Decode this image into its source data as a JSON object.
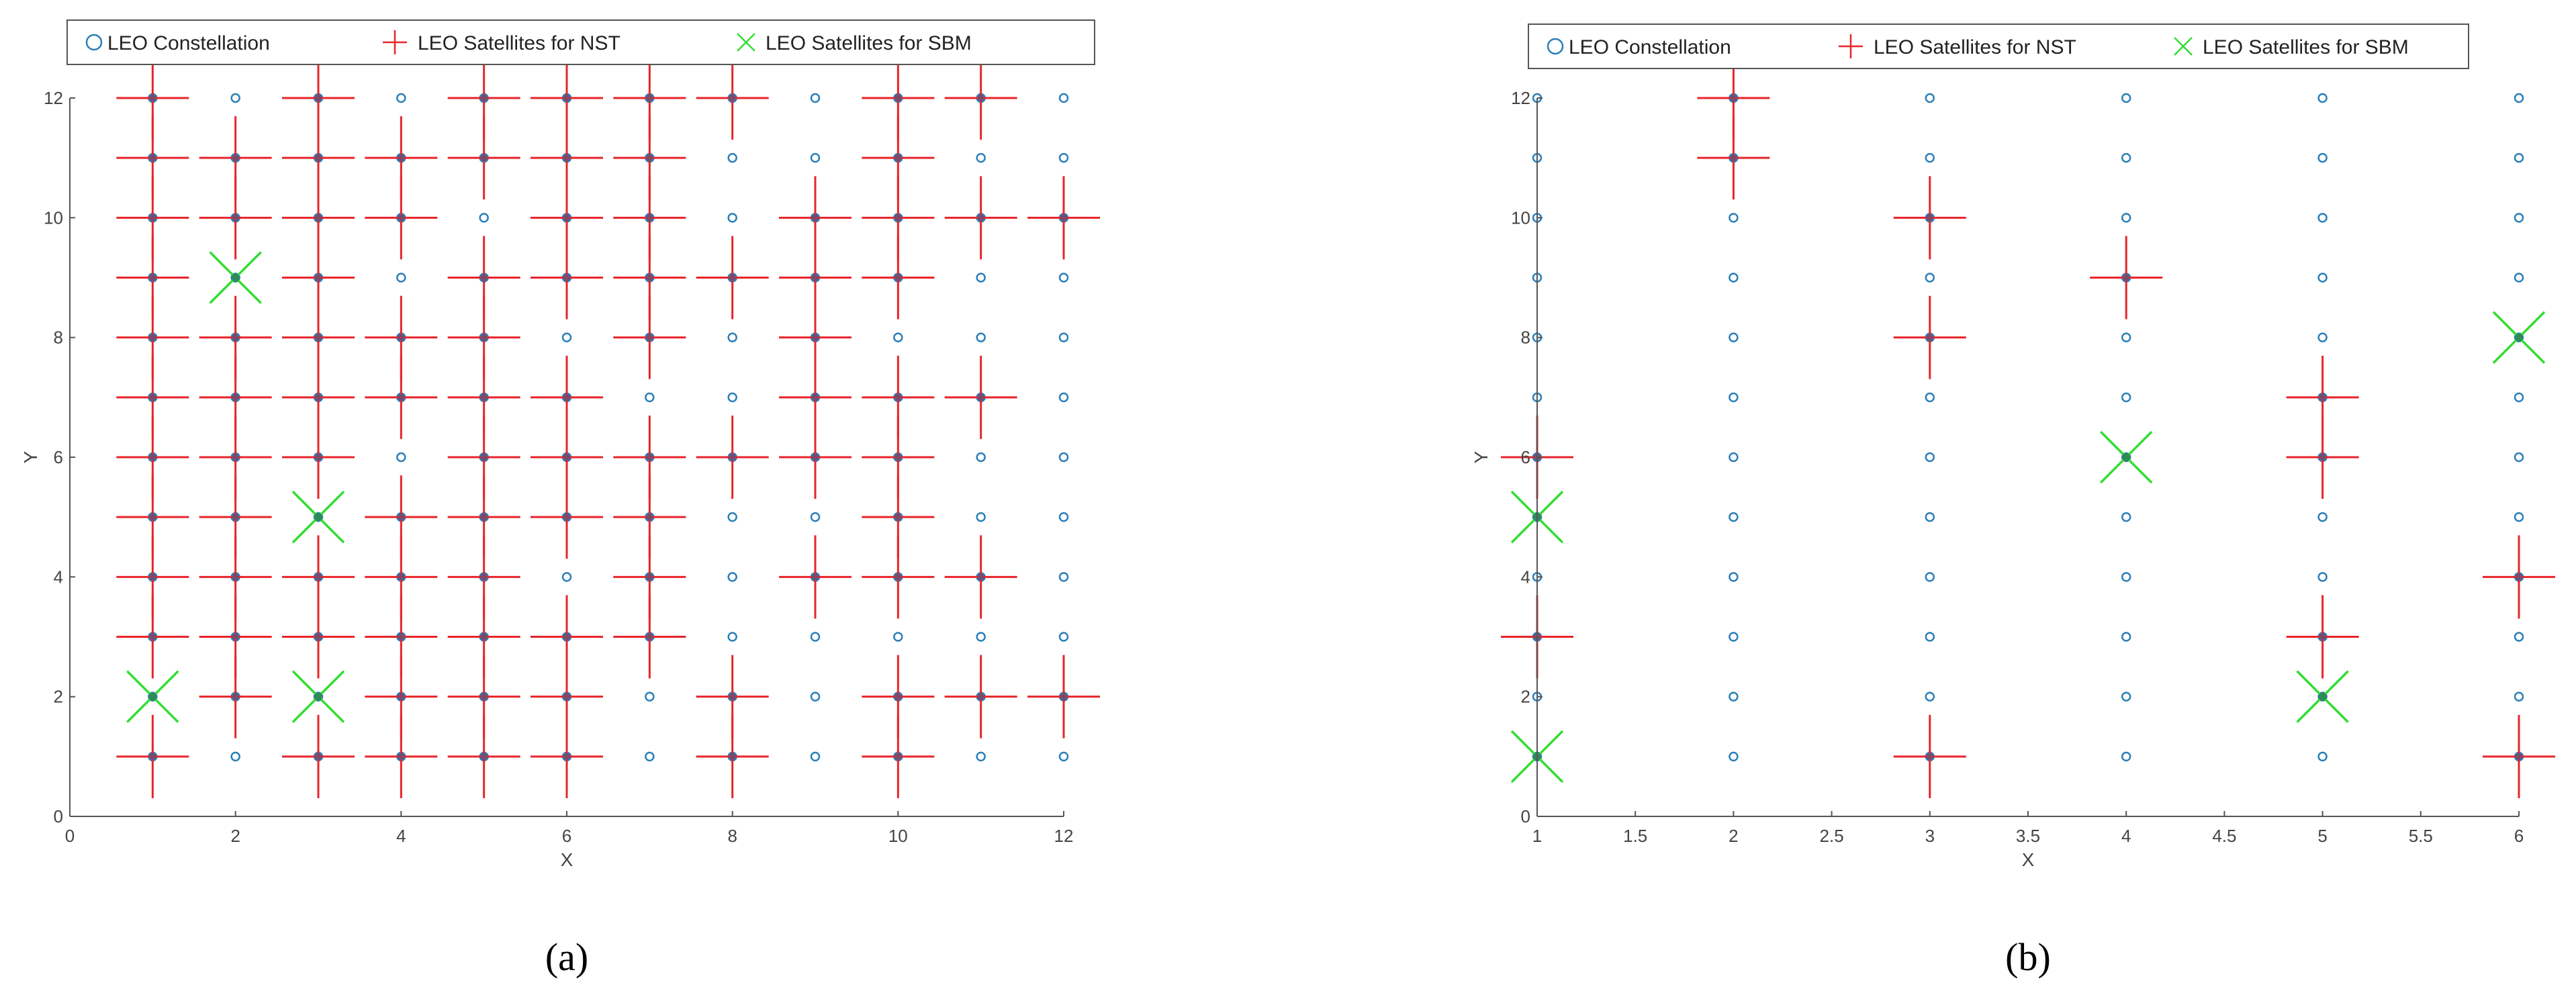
{
  "colors": {
    "constellation": "#2c7fb8",
    "nst": "#e8242b",
    "sbm": "#33dd33",
    "axis": "#555555"
  },
  "chart_data": [
    {
      "type": "scatter",
      "panel_label": "a",
      "caption_text": "(a)",
      "xlabel": "X",
      "ylabel": "Y",
      "xlim": [
        0,
        12
      ],
      "ylim": [
        0,
        12
      ],
      "xticks": [
        0,
        2,
        4,
        6,
        8,
        10,
        12
      ],
      "yticks": [
        0,
        2,
        4,
        6,
        8,
        10,
        12
      ],
      "legend": [
        "LEO Constellation",
        "LEO Satellites for NST",
        "LEO Satellites for SBM"
      ],
      "grid_columns": [
        1,
        2,
        3,
        4,
        5,
        6,
        7,
        8,
        9,
        10,
        11,
        12
      ],
      "grid_rows": [
        1,
        2,
        3,
        4,
        5,
        6,
        7,
        8,
        9,
        10,
        11,
        12
      ],
      "nst": [
        [
          1,
          1
        ],
        [
          1,
          3
        ],
        [
          1,
          4
        ],
        [
          1,
          5
        ],
        [
          1,
          6
        ],
        [
          1,
          7
        ],
        [
          1,
          8
        ],
        [
          1,
          9
        ],
        [
          1,
          10
        ],
        [
          1,
          11
        ],
        [
          1,
          12
        ],
        [
          2,
          2
        ],
        [
          2,
          3
        ],
        [
          2,
          4
        ],
        [
          2,
          5
        ],
        [
          2,
          6
        ],
        [
          2,
          7
        ],
        [
          2,
          8
        ],
        [
          2,
          10
        ],
        [
          2,
          11
        ],
        [
          3,
          1
        ],
        [
          3,
          3
        ],
        [
          3,
          4
        ],
        [
          3,
          6
        ],
        [
          3,
          7
        ],
        [
          3,
          8
        ],
        [
          3,
          9
        ],
        [
          3,
          10
        ],
        [
          3,
          11
        ],
        [
          3,
          12
        ],
        [
          4,
          1
        ],
        [
          4,
          2
        ],
        [
          4,
          3
        ],
        [
          4,
          4
        ],
        [
          4,
          5
        ],
        [
          4,
          7
        ],
        [
          4,
          8
        ],
        [
          4,
          10
        ],
        [
          4,
          11
        ],
        [
          5,
          1
        ],
        [
          5,
          2
        ],
        [
          5,
          3
        ],
        [
          5,
          4
        ],
        [
          5,
          5
        ],
        [
          5,
          6
        ],
        [
          5,
          7
        ],
        [
          5,
          8
        ],
        [
          5,
          9
        ],
        [
          5,
          11
        ],
        [
          5,
          12
        ],
        [
          6,
          1
        ],
        [
          6,
          2
        ],
        [
          6,
          3
        ],
        [
          6,
          5
        ],
        [
          6,
          6
        ],
        [
          6,
          7
        ],
        [
          6,
          9
        ],
        [
          6,
          10
        ],
        [
          6,
          11
        ],
        [
          6,
          12
        ],
        [
          7,
          3
        ],
        [
          7,
          4
        ],
        [
          7,
          5
        ],
        [
          7,
          6
        ],
        [
          7,
          8
        ],
        [
          7,
          9
        ],
        [
          7,
          10
        ],
        [
          7,
          11
        ],
        [
          7,
          12
        ],
        [
          8,
          1
        ],
        [
          8,
          2
        ],
        [
          8,
          6
        ],
        [
          8,
          9
        ],
        [
          8,
          12
        ],
        [
          9,
          4
        ],
        [
          9,
          6
        ],
        [
          9,
          7
        ],
        [
          9,
          8
        ],
        [
          9,
          9
        ],
        [
          9,
          10
        ],
        [
          10,
          1
        ],
        [
          10,
          2
        ],
        [
          10,
          4
        ],
        [
          10,
          5
        ],
        [
          10,
          6
        ],
        [
          10,
          7
        ],
        [
          10,
          9
        ],
        [
          10,
          10
        ],
        [
          10,
          11
        ],
        [
          10,
          12
        ],
        [
          11,
          2
        ],
        [
          11,
          4
        ],
        [
          11,
          7
        ],
        [
          11,
          10
        ],
        [
          11,
          12
        ],
        [
          12,
          2
        ],
        [
          12,
          10
        ]
      ],
      "sbm": [
        [
          1,
          2
        ],
        [
          2,
          9
        ],
        [
          3,
          2
        ],
        [
          3,
          5
        ]
      ]
    },
    {
      "type": "scatter",
      "panel_label": "b",
      "caption_text": "(b)",
      "xlabel": "X",
      "ylabel": "Y",
      "xlim": [
        1,
        6
      ],
      "ylim": [
        0,
        12
      ],
      "xticks": [
        "1",
        "1.5",
        "2",
        "2.5",
        "3",
        "3.5",
        "4",
        "4.5",
        "5",
        "5.5",
        "6"
      ],
      "yticks": [
        0,
        2,
        4,
        6,
        8,
        10,
        12
      ],
      "legend": [
        "LEO Constellation",
        "LEO Satellites for NST",
        "LEO Satellites for SBM"
      ],
      "grid_columns": [
        1,
        2,
        3,
        4,
        5,
        6
      ],
      "grid_rows": [
        1,
        2,
        3,
        4,
        5,
        6,
        7,
        8,
        9,
        10,
        11,
        12
      ],
      "nst": [
        [
          1,
          3
        ],
        [
          1,
          6
        ],
        [
          2,
          11
        ],
        [
          2,
          12
        ],
        [
          3,
          1
        ],
        [
          3,
          8
        ],
        [
          3,
          10
        ],
        [
          4,
          9
        ],
        [
          5,
          3
        ],
        [
          5,
          6
        ],
        [
          5,
          7
        ],
        [
          6,
          1
        ],
        [
          6,
          4
        ]
      ],
      "sbm": [
        [
          1,
          1
        ],
        [
          1,
          5
        ],
        [
          4,
          6
        ],
        [
          5,
          2
        ],
        [
          6,
          8
        ]
      ]
    }
  ]
}
